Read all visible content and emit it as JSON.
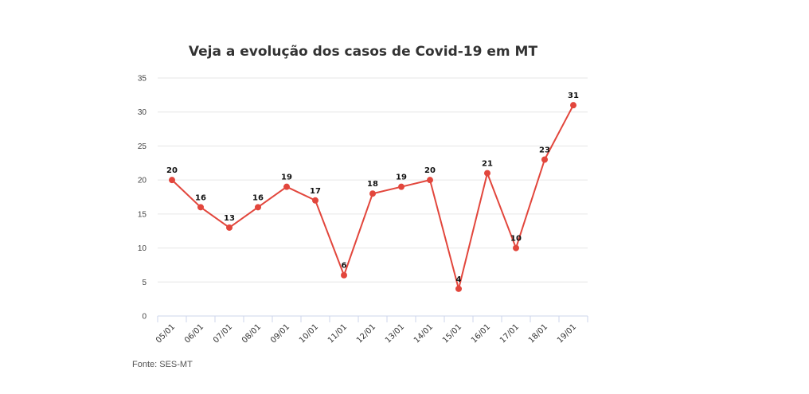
{
  "chart_data": {
    "type": "line",
    "title": "Veja a evolução dos casos de Covid-19 em MT",
    "categories": [
      "05/01",
      "06/01",
      "07/01",
      "08/01",
      "09/01",
      "10/01",
      "11/01",
      "12/01",
      "13/01",
      "14/01",
      "15/01",
      "16/01",
      "17/01",
      "18/01",
      "19/01"
    ],
    "series": [
      {
        "values": [
          20,
          16,
          13,
          16,
          19,
          17,
          6,
          18,
          19,
          20,
          4,
          21,
          10,
          23,
          31
        ]
      }
    ],
    "ylim": [
      0,
      35
    ],
    "yticks": [
      0,
      5,
      10,
      15,
      20,
      25,
      30,
      35
    ],
    "grid": true,
    "line_color": "#e2463c",
    "source": "Fonte: SES-MT"
  }
}
